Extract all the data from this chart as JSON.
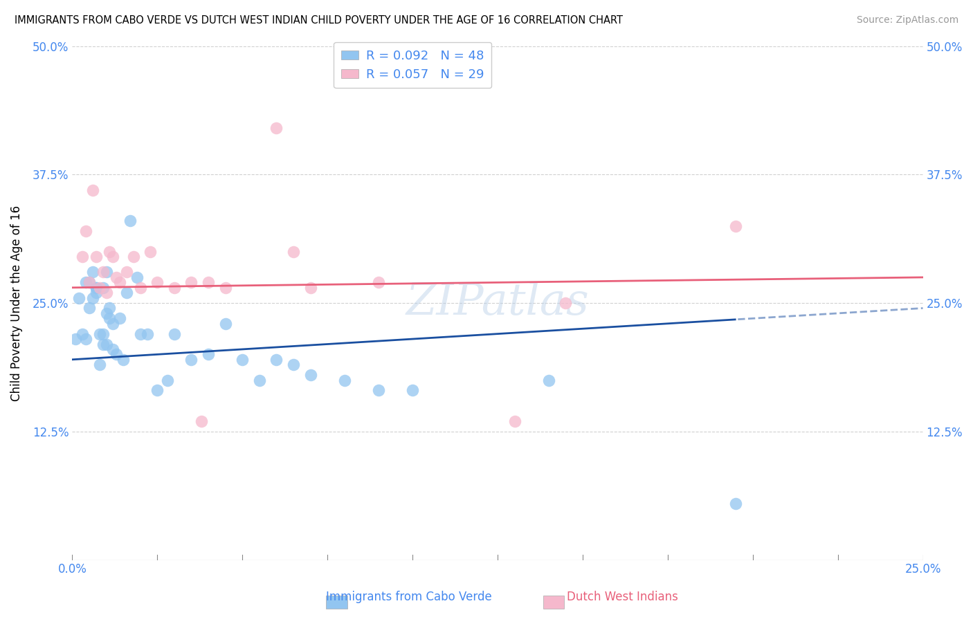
{
  "title": "IMMIGRANTS FROM CABO VERDE VS DUTCH WEST INDIAN CHILD POVERTY UNDER THE AGE OF 16 CORRELATION CHART",
  "source": "Source: ZipAtlas.com",
  "ylabel": "Child Poverty Under the Age of 16",
  "y_ticks": [
    0.0,
    0.125,
    0.25,
    0.375,
    0.5
  ],
  "y_tick_labels": [
    "",
    "12.5%",
    "25.0%",
    "37.5%",
    "50.0%"
  ],
  "x_ticks": [
    0.0,
    0.25
  ],
  "x_tick_labels": [
    "0.0%",
    "25.0%"
  ],
  "legend_label1": "R = 0.092   N = 48",
  "legend_label2": "R = 0.057   N = 29",
  "legend_label1_bottom": "Immigrants from Cabo Verde",
  "legend_label2_bottom": "Dutch West Indians",
  "color_blue": "#92c5f0",
  "color_pink": "#f5b8cc",
  "line_color_blue": "#1a4fa0",
  "line_color_pink": "#e8607a",
  "watermark": "ZIPatlas",
  "cabo_verde_x": [
    0.001,
    0.002,
    0.003,
    0.004,
    0.004,
    0.005,
    0.005,
    0.006,
    0.006,
    0.007,
    0.007,
    0.007,
    0.008,
    0.008,
    0.009,
    0.009,
    0.009,
    0.01,
    0.01,
    0.01,
    0.011,
    0.011,
    0.012,
    0.012,
    0.013,
    0.014,
    0.015,
    0.016,
    0.017,
    0.019,
    0.02,
    0.022,
    0.025,
    0.028,
    0.03,
    0.035,
    0.04,
    0.045,
    0.05,
    0.055,
    0.06,
    0.065,
    0.07,
    0.08,
    0.09,
    0.1,
    0.14,
    0.195
  ],
  "cabo_verde_y": [
    0.215,
    0.255,
    0.22,
    0.27,
    0.215,
    0.27,
    0.245,
    0.28,
    0.255,
    0.265,
    0.26,
    0.265,
    0.22,
    0.19,
    0.22,
    0.21,
    0.265,
    0.21,
    0.24,
    0.28,
    0.235,
    0.245,
    0.205,
    0.23,
    0.2,
    0.235,
    0.195,
    0.26,
    0.33,
    0.275,
    0.22,
    0.22,
    0.165,
    0.175,
    0.22,
    0.195,
    0.2,
    0.23,
    0.195,
    0.175,
    0.195,
    0.19,
    0.18,
    0.175,
    0.165,
    0.165,
    0.175,
    0.055
  ],
  "dutch_x": [
    0.003,
    0.004,
    0.005,
    0.006,
    0.007,
    0.008,
    0.009,
    0.01,
    0.011,
    0.012,
    0.013,
    0.014,
    0.016,
    0.018,
    0.02,
    0.023,
    0.025,
    0.03,
    0.035,
    0.038,
    0.04,
    0.045,
    0.06,
    0.065,
    0.07,
    0.09,
    0.13,
    0.145,
    0.195
  ],
  "dutch_y": [
    0.295,
    0.32,
    0.27,
    0.36,
    0.295,
    0.265,
    0.28,
    0.26,
    0.3,
    0.295,
    0.275,
    0.27,
    0.28,
    0.295,
    0.265,
    0.3,
    0.27,
    0.265,
    0.27,
    0.135,
    0.27,
    0.265,
    0.42,
    0.3,
    0.265,
    0.27,
    0.135,
    0.25,
    0.325
  ]
}
